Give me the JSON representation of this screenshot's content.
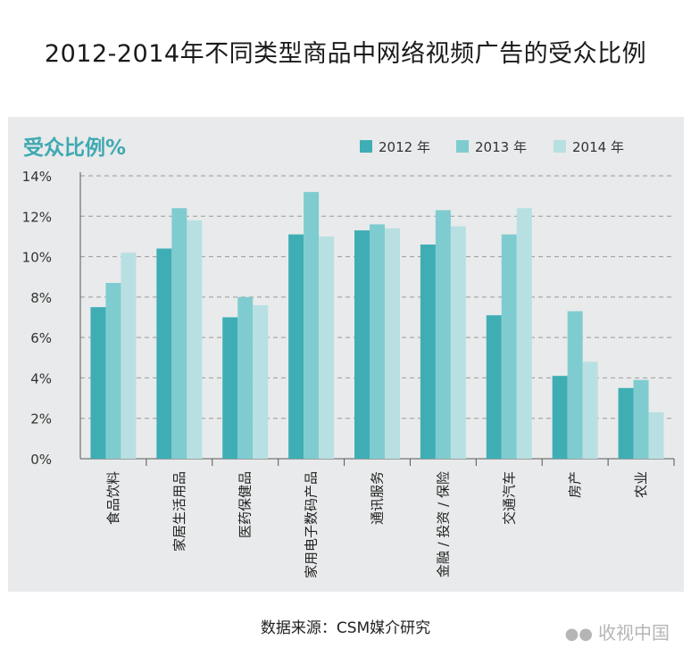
{
  "title": "2012-2014年不同类型商品中网络视频广告的受众比例",
  "source": "数据来源：CSM媒介研究",
  "watermark": {
    "icon": "wechat-icon",
    "text": "收视中国"
  },
  "colors": {
    "panel": "#e9eaeb",
    "s2012": "#3faeb4",
    "s2013": "#7fccd0",
    "s2014": "#b8e0e2",
    "title_accent": "#3fa9b2"
  },
  "chart_data": {
    "type": "bar",
    "ylabel": "受众比例%",
    "ylim": [
      0,
      14
    ],
    "yticks": [
      "0%",
      "2%",
      "4%",
      "6%",
      "8%",
      "10%",
      "12%",
      "14%"
    ],
    "grid": true,
    "legend_position": "top-right",
    "categories": [
      "食品饮料",
      "家居生活用品",
      "医药保健品",
      "家用电子数码产品",
      "通讯服务",
      "金融 / 投资 / 保险",
      "交通汽车",
      "房产",
      "农业"
    ],
    "series": [
      {
        "name": "2012 年",
        "values": [
          7.5,
          10.4,
          7.0,
          11.1,
          11.3,
          10.6,
          7.1,
          4.1,
          3.5
        ]
      },
      {
        "name": "2013 年",
        "values": [
          8.7,
          12.4,
          8.0,
          13.2,
          11.6,
          12.3,
          11.1,
          7.3,
          3.9
        ]
      },
      {
        "name": "2014 年",
        "values": [
          10.2,
          11.8,
          7.6,
          11.0,
          11.4,
          11.5,
          12.4,
          4.8,
          2.3
        ]
      }
    ]
  }
}
